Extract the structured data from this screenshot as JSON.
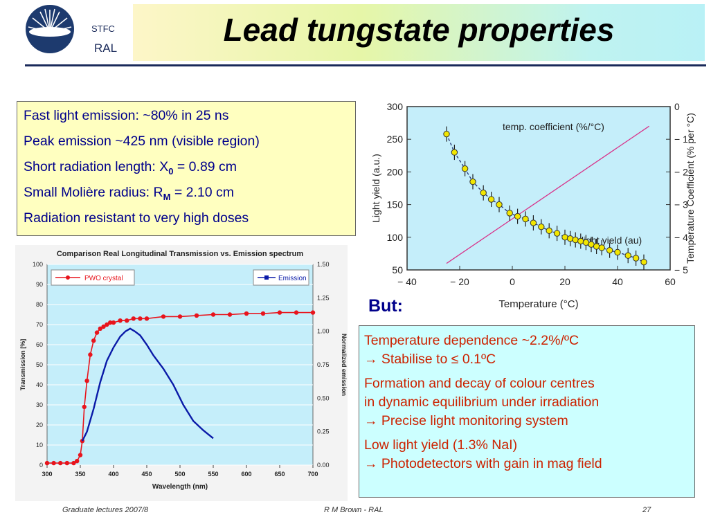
{
  "header": {
    "org_top": "STFC",
    "org_bottom": "RAL",
    "title": "Lead tungstate properties"
  },
  "properties": {
    "l1": "Fast light emission:    ~80% in 25 ns",
    "l2": "Peak emission ~425 nm (visible region)",
    "l3_pre": "Short radiation length:  X",
    "l3_sub": "0",
    "l3_post": " = 0.89 cm",
    "l4_pre": "Small Molière radius:   R",
    "l4_sub": "M",
    "l4_post": " = 2.10 cm",
    "l5": "Radiation resistant to very high doses"
  },
  "but_label": "But:",
  "info": {
    "p1": "Temperature dependence ~2.2%/ºC",
    "p2": "→ Stabilise to ≤ 0.1ºC",
    "p3": "Formation and decay of colour centres",
    "p4": "in dynamic equilibrium under irradiation",
    "p5": "→ Precise  light monitoring system",
    "p6": "Low light yield (1.3% NaI)",
    "p7": "→ Photodetectors with gain in mag field"
  },
  "footer": {
    "left": "Graduate lectures 2007/8",
    "center": "R M Brown - RAL",
    "right": "27"
  },
  "colors": {
    "navy": "#00008b",
    "red_text": "#cc2200",
    "chart_bg": "#c5eefa"
  },
  "chart_data": [
    {
      "type": "scatter",
      "title": "",
      "xlabel": "Temperature (°C)",
      "ylabel": "Light yield (a.u.)",
      "y2label": "Temperature Coefficient (% per °C)",
      "xlim": [
        -40,
        60
      ],
      "ylim": [
        50,
        300
      ],
      "y2lim": [
        -5,
        0
      ],
      "xticks": [
        -40,
        -20,
        0,
        20,
        40,
        60
      ],
      "yticks": [
        50,
        100,
        150,
        200,
        250,
        300
      ],
      "y2ticks": [
        0,
        -1,
        -2,
        -3,
        -4,
        -5
      ],
      "annotations": [
        "temp. coefficient (%/°C)",
        "light yield (au)"
      ],
      "series": [
        {
          "kind": "points",
          "x": [
            -25,
            -22,
            -18,
            -15,
            -11,
            -8,
            -5,
            -1,
            2,
            5,
            8,
            11,
            14,
            17,
            20,
            22,
            24,
            26,
            28,
            30,
            32,
            34,
            37,
            40,
            44,
            47,
            50
          ],
          "y": [
            258,
            230,
            205,
            185,
            168,
            158,
            150,
            137,
            132,
            128,
            122,
            116,
            110,
            106,
            100,
            98,
            96,
            94,
            92,
            89,
            86,
            84,
            80,
            77,
            72,
            68,
            62
          ]
        },
        {
          "kind": "line",
          "axis": "y2",
          "x": [
            -25,
            52
          ],
          "y": [
            -4.8,
            -0.6
          ]
        }
      ]
    },
    {
      "type": "line",
      "title": "Comparison Real Longitudinal Transmission vs. Emission spectrum",
      "xlabel": "Wavelength (nm)",
      "ylabel": "Transmission [%]",
      "y2label": "Normalized emission",
      "xlim": [
        300,
        700
      ],
      "ylim": [
        0,
        100
      ],
      "y2lim": [
        0,
        1.5
      ],
      "xticks": [
        300,
        350,
        400,
        450,
        500,
        550,
        600,
        650,
        700
      ],
      "yticks": [
        0,
        10,
        20,
        30,
        40,
        50,
        60,
        70,
        80,
        90,
        100
      ],
      "y2ticks": [
        0.0,
        0.25,
        0.5,
        0.75,
        1.0,
        1.25,
        1.5
      ],
      "series": [
        {
          "name": "PWO crystal",
          "color": "#e8141c",
          "x": [
            300,
            310,
            320,
            330,
            340,
            345,
            350,
            353,
            356,
            360,
            365,
            370,
            375,
            380,
            385,
            390,
            395,
            400,
            410,
            420,
            430,
            440,
            450,
            475,
            500,
            525,
            550,
            575,
            600,
            625,
            650,
            675,
            700
          ],
          "y": [
            1,
            1,
            1,
            1,
            1,
            2,
            5,
            12,
            29,
            42,
            55,
            62,
            66,
            68,
            69,
            70,
            71,
            71,
            72,
            72,
            73,
            73,
            73,
            74,
            74,
            74.5,
            75,
            75,
            75.5,
            75.5,
            76,
            76,
            76
          ]
        },
        {
          "name": "Emission",
          "color": "#0a1aa8",
          "axis": "y2",
          "x": [
            353,
            360,
            370,
            380,
            390,
            400,
            410,
            418,
            425,
            432,
            440,
            450,
            460,
            475,
            490,
            505,
            520,
            535,
            550
          ],
          "y": [
            0.18,
            0.25,
            0.42,
            0.62,
            0.78,
            0.88,
            0.96,
            1.0,
            1.02,
            1.0,
            0.97,
            0.9,
            0.82,
            0.72,
            0.6,
            0.45,
            0.33,
            0.26,
            0.2
          ]
        }
      ]
    }
  ]
}
